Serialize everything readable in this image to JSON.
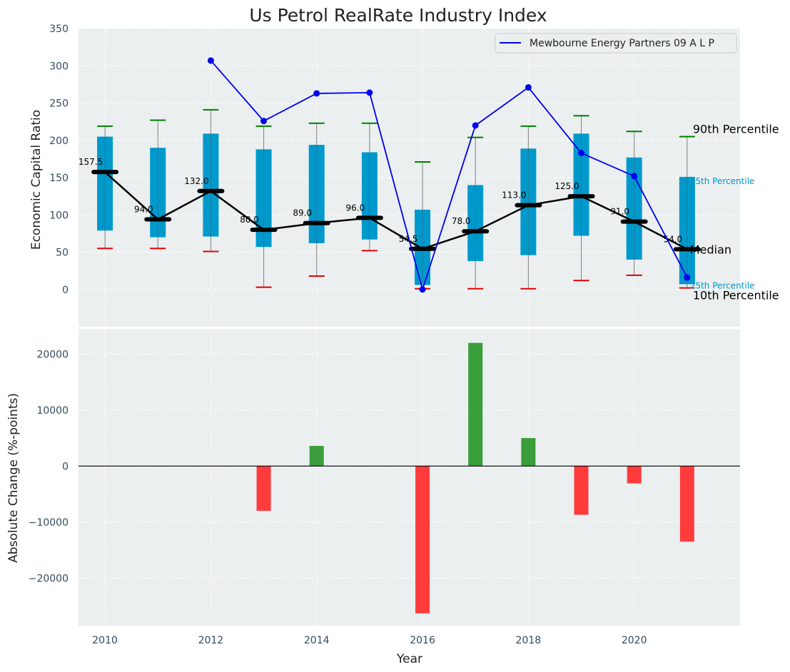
{
  "chart_data": [
    {
      "type": "box",
      "title": "Us Petrol RealRate Industry Index",
      "xlabel": "",
      "ylabel": "Economic Capital Ratio",
      "ylim": [
        -50,
        350
      ],
      "yticks": [
        0,
        50,
        100,
        150,
        200,
        250,
        300,
        350
      ],
      "years": [
        2010,
        2011,
        2012,
        2013,
        2014,
        2015,
        2016,
        2017,
        2018,
        2019,
        2020,
        2021
      ],
      "p10": [
        55,
        55,
        51,
        3,
        18,
        52,
        1,
        1,
        1,
        12,
        19,
        2
      ],
      "p25": [
        79,
        70,
        71,
        57,
        62,
        67,
        6,
        38,
        46,
        72,
        40,
        7
      ],
      "median": [
        157.5,
        94.0,
        132.0,
        80.0,
        89.0,
        96.0,
        54.5,
        78.0,
        113.0,
        125.0,
        91.0,
        54.0
      ],
      "p75": [
        205,
        190,
        209,
        188,
        194,
        184,
        107,
        140,
        189,
        209,
        177,
        151
      ],
      "p90": [
        219,
        227,
        241,
        219,
        223,
        223,
        171,
        204,
        219,
        233,
        212,
        205
      ],
      "median_labels": [
        "157.5",
        "94.0",
        "132.0",
        "80.0",
        "89.0",
        "96.0",
        "54.5",
        "78.0",
        "113.0",
        "125.0",
        "91.0",
        "54.0"
      ],
      "series": [
        {
          "name": "Mewbourne Energy Partners 09 A L P",
          "x": [
            2012,
            2013,
            2014,
            2015,
            2016,
            2017,
            2018,
            2019,
            2020,
            2021
          ],
          "values": [
            307,
            226,
            263,
            264,
            0,
            220,
            271,
            183,
            152,
            16
          ]
        }
      ],
      "legend_label": "Mewbourne Energy Partners 09 A L P",
      "legend_position": "top-right",
      "annotations": {
        "p90": "90th Percentile",
        "p75": "75th Percentile",
        "median": "Median",
        "p25": "25th Percentile",
        "p10": "10th Percentile"
      },
      "colors": {
        "box": "#0099cc",
        "median": "#000000",
        "line": "#0000ee",
        "p90_cap": "#008000",
        "p10_cap": "#e00000",
        "background": "#ebeff0"
      }
    },
    {
      "type": "bar",
      "title": "",
      "xlabel": "Year",
      "ylabel": "Absolute Change (%-points)",
      "ylim": [
        -28500,
        24500
      ],
      "yticks": [
        -20000,
        -10000,
        0,
        10000,
        20000
      ],
      "ytick_labels": [
        "−20000",
        "−10000",
        "0",
        "10000",
        "20000"
      ],
      "xticks": [
        2010,
        2012,
        2014,
        2016,
        2018,
        2020
      ],
      "xlim": [
        2009.5,
        2022.0
      ],
      "x": [
        2013,
        2014,
        2016,
        2017,
        2018,
        2019,
        2020,
        2021
      ],
      "values": [
        -8000,
        3600,
        -26300,
        22000,
        5000,
        -8700,
        -3100,
        -13500
      ],
      "colors": {
        "positive": "#3a9e3a",
        "negative": "#ff3b3b"
      }
    }
  ]
}
